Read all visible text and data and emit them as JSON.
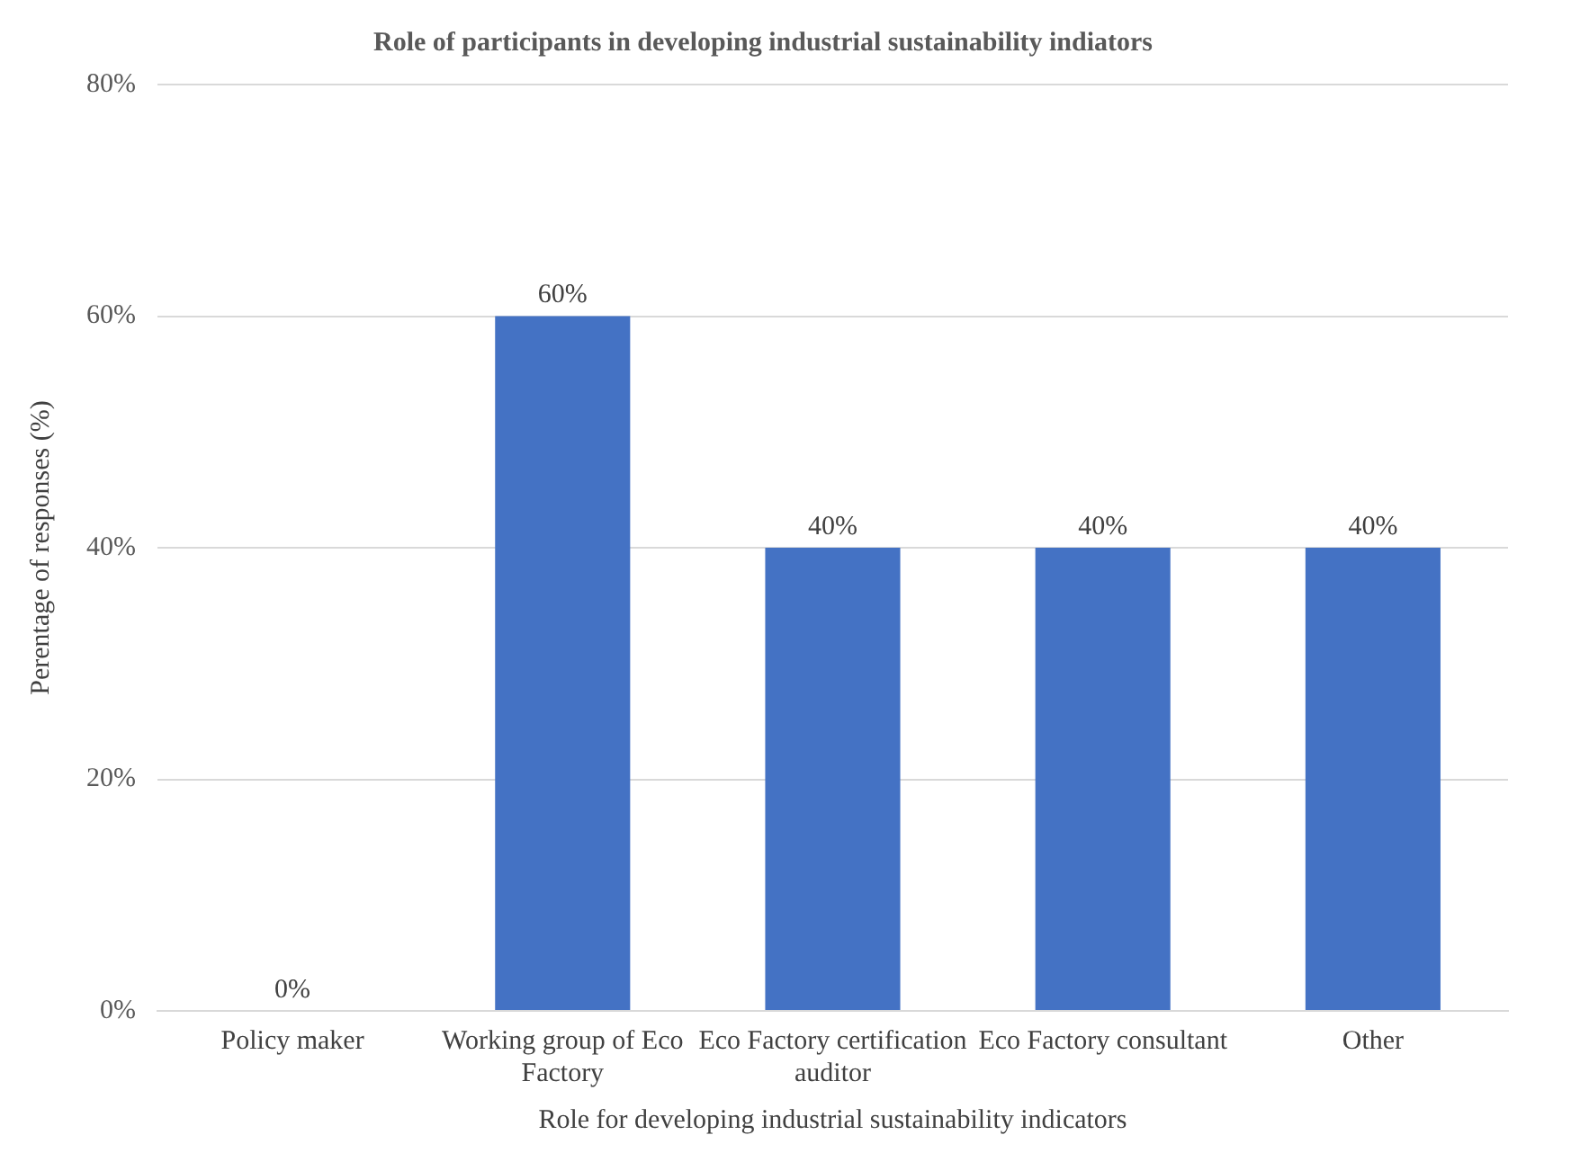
{
  "chart_data": {
    "type": "bar",
    "title": "Role of participants in developing industrial sustainability indiators",
    "xlabel": "Role for developing industrial sustainability indicators",
    "ylabel": "Perentage of responses (%)",
    "categories": [
      "Policy maker",
      "Working group of Eco Factory",
      "Eco Factory certification auditor",
      "Eco Factory consultant",
      "Other"
    ],
    "values": [
      0,
      60,
      40,
      40,
      40
    ],
    "color": "#4472c4",
    "value_labels": [
      "0%",
      "60%",
      "40%",
      "40%",
      "40%"
    ],
    "ylim": [
      0,
      80
    ],
    "yticks": [
      {
        "value": 0,
        "label": "0%"
      },
      {
        "value": 20,
        "label": "20%"
      },
      {
        "value": 40,
        "label": "40%"
      },
      {
        "value": 60,
        "label": "60%"
      },
      {
        "value": 80,
        "label": "80%"
      }
    ],
    "grid": "y"
  }
}
